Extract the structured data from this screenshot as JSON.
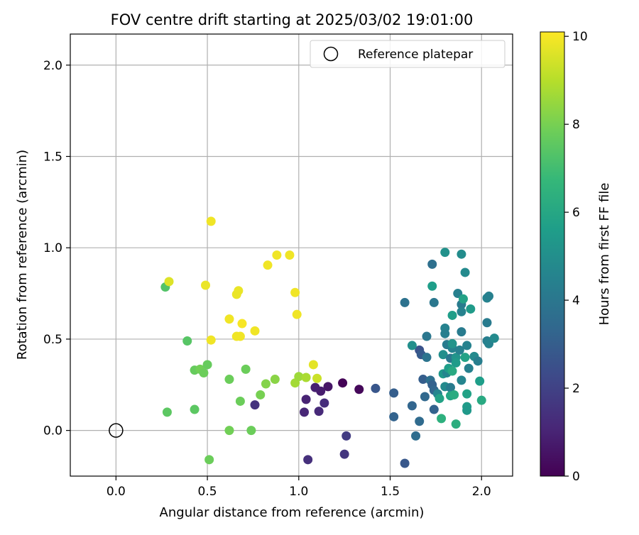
{
  "chart_data": {
    "type": "scatter",
    "title": "FOV centre drift starting at 2025/03/02 19:01:00",
    "xlabel": "Angular distance from reference (arcmin)",
    "ylabel": "Rotation from reference (arcmin)",
    "xlim": [
      -0.25,
      2.17
    ],
    "ylim": [
      -0.25,
      2.17
    ],
    "xticks": [
      0.0,
      0.5,
      1.0,
      1.5,
      2.0
    ],
    "xtick_labels": [
      "0.0",
      "0.5",
      "1.0",
      "1.5",
      "2.0"
    ],
    "yticks": [
      0.0,
      0.5,
      1.0,
      1.5,
      2.0
    ],
    "ytick_labels": [
      "0.0",
      "0.5",
      "1.0",
      "1.5",
      "2.0"
    ],
    "grid": true,
    "legend": {
      "position": "upper-right",
      "entries": [
        {
          "label": "Reference platepar",
          "marker": "open-circle"
        }
      ]
    },
    "reference_point": {
      "x": 0.0,
      "y": 0.0,
      "label": "Reference platepar"
    },
    "colorbar": {
      "label": "Hours from first FF file",
      "colormap": "viridis",
      "range": [
        0,
        10.1
      ],
      "ticks": [
        0,
        2,
        4,
        6,
        8,
        10
      ],
      "tick_labels": [
        "0",
        "2",
        "4",
        "6",
        "8",
        "10"
      ],
      "colors": [
        "#440154",
        "#482878",
        "#3e4989",
        "#31688e",
        "#26828e",
        "#1f9e89",
        "#35b779",
        "#6ece58",
        "#b5de2b",
        "#fde725"
      ]
    },
    "series": [
      {
        "points": [
          [
            1.24,
            0.26,
            0.05
          ],
          [
            1.33,
            0.225,
            0.2
          ],
          [
            1.16,
            0.24,
            0.6
          ],
          [
            1.12,
            0.215,
            0.8
          ],
          [
            1.09,
            0.235,
            0.9
          ],
          [
            1.04,
            0.17,
            1.0
          ],
          [
            1.03,
            0.1,
            1.1
          ],
          [
            1.11,
            0.105,
            1.2
          ],
          [
            1.14,
            0.15,
            1.3
          ],
          [
            1.05,
            -0.16,
            1.4
          ],
          [
            1.25,
            -0.13,
            1.6
          ],
          [
            1.26,
            -0.03,
            1.8
          ],
          [
            0.76,
            0.14,
            1.5
          ],
          [
            1.42,
            0.23,
            2.7
          ],
          [
            1.52,
            0.205,
            3.0
          ],
          [
            1.52,
            0.075,
            3.2
          ],
          [
            1.58,
            -0.18,
            2.8
          ],
          [
            1.58,
            0.7,
            3.8
          ],
          [
            1.62,
            0.135,
            3.3
          ],
          [
            1.64,
            -0.03,
            3.6
          ],
          [
            1.66,
            0.05,
            3.5
          ],
          [
            1.66,
            0.44,
            2.6
          ],
          [
            1.67,
            0.415,
            2.9
          ],
          [
            1.68,
            0.28,
            3.0
          ],
          [
            1.69,
            0.185,
            3.4
          ],
          [
            1.7,
            0.515,
            4.0
          ],
          [
            1.7,
            0.4,
            3.9
          ],
          [
            1.72,
            0.275,
            3.7
          ],
          [
            1.73,
            0.25,
            3.1
          ],
          [
            1.73,
            0.91,
            3.7
          ],
          [
            1.74,
            0.7,
            4.0
          ],
          [
            1.74,
            0.22,
            3.3
          ],
          [
            1.74,
            0.115,
            3.2
          ],
          [
            1.62,
            0.465,
            5.0
          ],
          [
            1.76,
            0.2,
            4.6
          ],
          [
            1.73,
            0.79,
            5.6
          ],
          [
            1.77,
            0.175,
            5.8
          ],
          [
            1.78,
            0.065,
            6.4
          ],
          [
            1.79,
            0.31,
            5.4
          ],
          [
            1.79,
            0.415,
            5.0
          ],
          [
            1.8,
            0.975,
            5.1
          ],
          [
            1.8,
            0.56,
            4.5
          ],
          [
            1.8,
            0.53,
            4.3
          ],
          [
            1.8,
            0.24,
            4.8
          ],
          [
            1.81,
            0.47,
            4.2
          ],
          [
            1.81,
            0.315,
            4.6
          ],
          [
            1.82,
            0.34,
            5.6
          ],
          [
            1.83,
            0.395,
            4.0
          ],
          [
            1.83,
            0.235,
            4.2
          ],
          [
            1.83,
            0.19,
            5.9
          ],
          [
            1.84,
            0.45,
            4.5
          ],
          [
            1.84,
            0.325,
            6.1
          ],
          [
            1.84,
            0.475,
            5.2
          ],
          [
            1.84,
            0.63,
            5.6
          ],
          [
            1.85,
            0.195,
            6.2
          ],
          [
            1.86,
            0.4,
            5.2
          ],
          [
            1.86,
            0.035,
            6.3
          ],
          [
            1.86,
            0.37,
            5.5
          ],
          [
            1.87,
            0.75,
            4.4
          ],
          [
            1.88,
            0.44,
            4.4
          ],
          [
            1.89,
            0.965,
            4.9
          ],
          [
            1.89,
            0.69,
            4.2
          ],
          [
            1.89,
            0.54,
            4.2
          ],
          [
            1.89,
            0.275,
            4.6
          ],
          [
            1.89,
            0.65,
            4.5
          ],
          [
            1.9,
            0.72,
            5.8
          ],
          [
            1.91,
            0.4,
            5.8
          ],
          [
            1.91,
            0.865,
            4.8
          ],
          [
            1.92,
            0.2,
            5.8
          ],
          [
            1.92,
            0.13,
            5.5
          ],
          [
            1.92,
            0.11,
            5.4
          ],
          [
            1.92,
            0.465,
            4.5
          ],
          [
            1.93,
            0.34,
            4.4
          ],
          [
            1.94,
            0.665,
            5.5
          ],
          [
            1.96,
            0.405,
            4.8
          ],
          [
            1.98,
            0.38,
            4.3
          ],
          [
            1.99,
            0.27,
            5.6
          ],
          [
            2.0,
            0.165,
            6.1
          ],
          [
            2.03,
            0.59,
            4.2
          ],
          [
            2.03,
            0.725,
            4.5
          ],
          [
            2.03,
            0.49,
            4.3
          ],
          [
            2.04,
            0.735,
            4.4
          ],
          [
            2.04,
            0.475,
            4.5
          ],
          [
            2.07,
            0.505,
            4.8
          ],
          [
            0.27,
            0.785,
            7.3
          ],
          [
            0.28,
            0.1,
            7.5
          ],
          [
            0.39,
            0.49,
            7.4
          ],
          [
            0.43,
            0.115,
            7.5
          ],
          [
            0.43,
            0.33,
            7.7
          ],
          [
            0.46,
            0.335,
            7.9
          ],
          [
            0.48,
            0.315,
            7.8
          ],
          [
            0.5,
            0.36,
            7.7
          ],
          [
            0.51,
            -0.16,
            7.8
          ],
          [
            0.62,
            0.28,
            7.8
          ],
          [
            0.62,
            0.0,
            7.9
          ],
          [
            0.68,
            0.16,
            7.8
          ],
          [
            0.71,
            0.335,
            7.8
          ],
          [
            0.74,
            0.0,
            7.8
          ],
          [
            0.79,
            0.195,
            8.0
          ],
          [
            0.82,
            0.255,
            8.2
          ],
          [
            0.87,
            0.28,
            8.3
          ],
          [
            0.98,
            0.26,
            8.7
          ],
          [
            1.0,
            0.295,
            8.6
          ],
          [
            1.04,
            0.29,
            8.8
          ],
          [
            1.1,
            0.285,
            9.3
          ],
          [
            0.29,
            0.815,
            9.6
          ],
          [
            0.49,
            0.795,
            9.8
          ],
          [
            0.52,
            1.145,
            9.9
          ],
          [
            0.52,
            0.495,
            9.9
          ],
          [
            0.62,
            0.61,
            9.9
          ],
          [
            0.66,
            0.515,
            9.9
          ],
          [
            0.66,
            0.745,
            9.8
          ],
          [
            0.67,
            0.765,
            9.8
          ],
          [
            0.68,
            0.515,
            9.9
          ],
          [
            0.69,
            0.585,
            10.0
          ],
          [
            0.76,
            0.545,
            9.9
          ],
          [
            0.83,
            0.905,
            9.9
          ],
          [
            0.88,
            0.96,
            9.9
          ],
          [
            0.95,
            0.96,
            9.9
          ],
          [
            0.98,
            0.755,
            9.9
          ],
          [
            0.99,
            0.635,
            9.9
          ],
          [
            1.08,
            0.36,
            9.7
          ]
        ]
      }
    ]
  }
}
